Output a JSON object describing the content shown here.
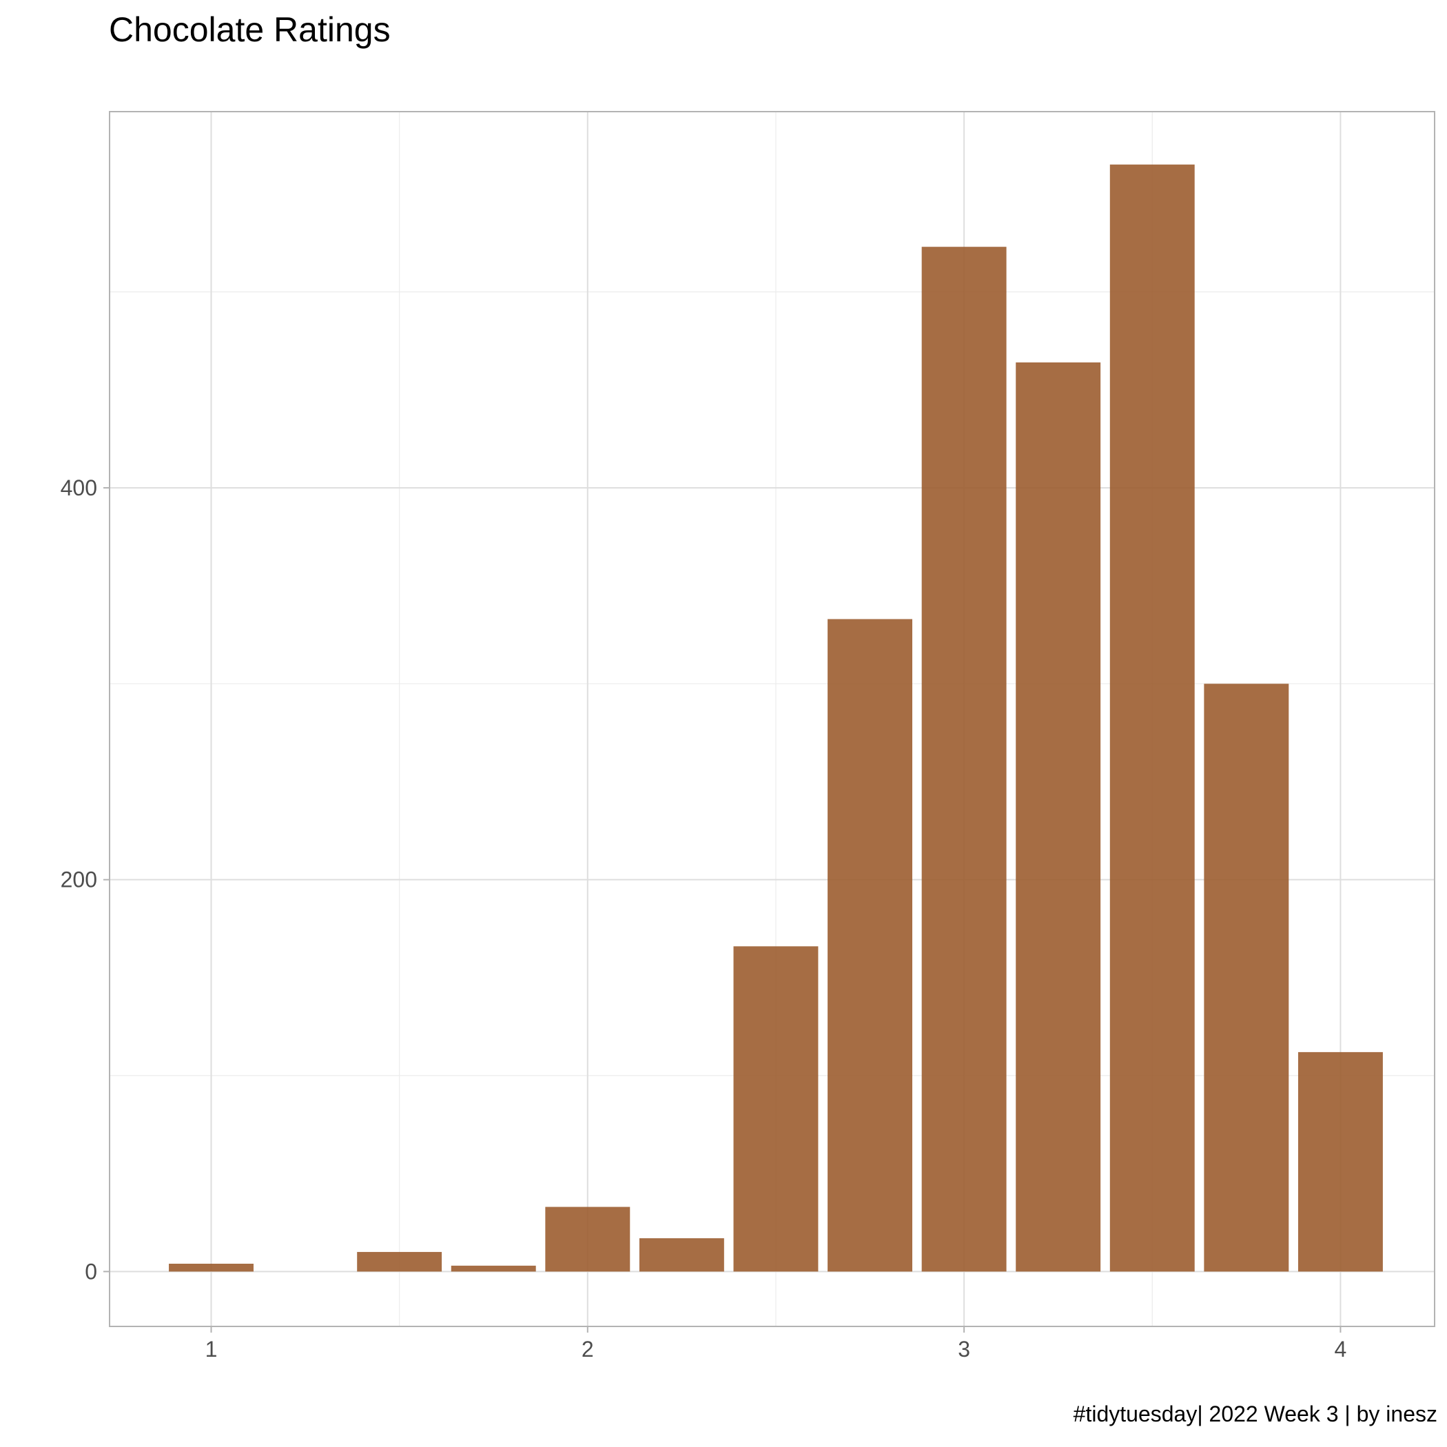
{
  "chart_data": {
    "type": "bar",
    "title": "Chocolate Ratings",
    "caption": "#tidytuesday| 2022 Week 3 | by inesz",
    "xlabel": "",
    "ylabel": "",
    "categories": [
      1.0,
      1.25,
      1.5,
      1.75,
      2.0,
      2.25,
      2.5,
      2.75,
      3.0,
      3.25,
      3.5,
      3.75,
      4.0
    ],
    "values": [
      4,
      0,
      10,
      3,
      33,
      17,
      166,
      333,
      523,
      464,
      565,
      300,
      112
    ],
    "xlim": [
      0.73,
      4.25
    ],
    "ylim": [
      -28,
      592
    ],
    "x_ticks": [
      1,
      2,
      3,
      4
    ],
    "y_ticks": [
      0,
      200,
      400
    ],
    "x_tick_labels": [
      "1",
      "2",
      "3",
      "4"
    ],
    "y_tick_labels": [
      "0",
      "200",
      "400"
    ],
    "bar_color": "#9c5d30",
    "grid": true,
    "theme": "light"
  }
}
